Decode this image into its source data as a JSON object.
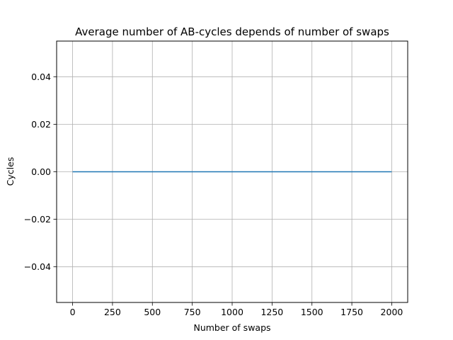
{
  "chart_data": {
    "type": "line",
    "title": "Average number of AB-cycles depends of number of swaps",
    "xlabel": "Number of swaps",
    "ylabel": "Cycles",
    "xlim": [
      -100,
      2100
    ],
    "ylim": [
      -0.055,
      0.055
    ],
    "xticks": [
      0,
      250,
      500,
      750,
      1000,
      1250,
      1500,
      1750,
      2000
    ],
    "yticks": [
      -0.04,
      -0.02,
      0.0,
      0.02,
      0.04
    ],
    "ytick_labels": [
      "−0.04",
      "−0.02",
      "0.00",
      "0.02",
      "0.04"
    ],
    "grid": true,
    "series": [
      {
        "color": "#1f77b4",
        "x": [
          0,
          2000
        ],
        "y": [
          0,
          0
        ]
      }
    ]
  }
}
